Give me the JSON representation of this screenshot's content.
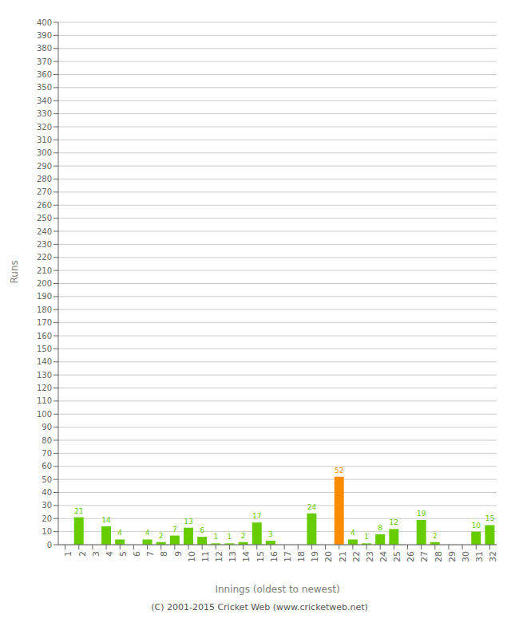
{
  "chart_data": {
    "type": "bar",
    "xlabel": "Innings (oldest to newest)",
    "ylabel": "Runs",
    "categories": [
      "1",
      "2",
      "3",
      "4",
      "5",
      "6",
      "7",
      "8",
      "9",
      "10",
      "11",
      "12",
      "13",
      "14",
      "15",
      "16",
      "17",
      "18",
      "19",
      "20",
      "21",
      "22",
      "23",
      "24",
      "25",
      "26",
      "27",
      "28",
      "29",
      "30",
      "31",
      "32"
    ],
    "values": [
      0,
      21,
      0,
      14,
      4,
      0,
      4,
      2,
      7,
      13,
      6,
      1,
      1,
      2,
      17,
      3,
      0,
      0,
      24,
      0,
      52,
      4,
      1,
      8,
      12,
      0,
      19,
      2,
      0,
      0,
      10,
      15
    ],
    "colors": [
      "#66cc00",
      "#66cc00",
      "#66cc00",
      "#66cc00",
      "#66cc00",
      "#66cc00",
      "#66cc00",
      "#66cc00",
      "#66cc00",
      "#66cc00",
      "#66cc00",
      "#66cc00",
      "#66cc00",
      "#66cc00",
      "#66cc00",
      "#66cc00",
      "#66cc00",
      "#66cc00",
      "#66cc00",
      "#66cc00",
      "#ff8c00",
      "#66cc00",
      "#66cc00",
      "#66cc00",
      "#66cc00",
      "#66cc00",
      "#66cc00",
      "#66cc00",
      "#66cc00",
      "#66cc00",
      "#66cc00",
      "#66cc00"
    ],
    "ylim": [
      0,
      400
    ],
    "yticks": [
      0,
      10,
      20,
      30,
      40,
      50,
      60,
      70,
      80,
      90,
      100,
      110,
      120,
      130,
      140,
      150,
      160,
      170,
      180,
      190,
      200,
      210,
      220,
      230,
      240,
      250,
      260,
      270,
      280,
      290,
      300,
      310,
      320,
      330,
      340,
      350,
      360,
      370,
      380,
      390,
      400
    ],
    "grid": true,
    "data_labels": true,
    "annotations": [
      "(C) 2001-2015 Cricket Web (www.cricketweb.net)"
    ]
  }
}
